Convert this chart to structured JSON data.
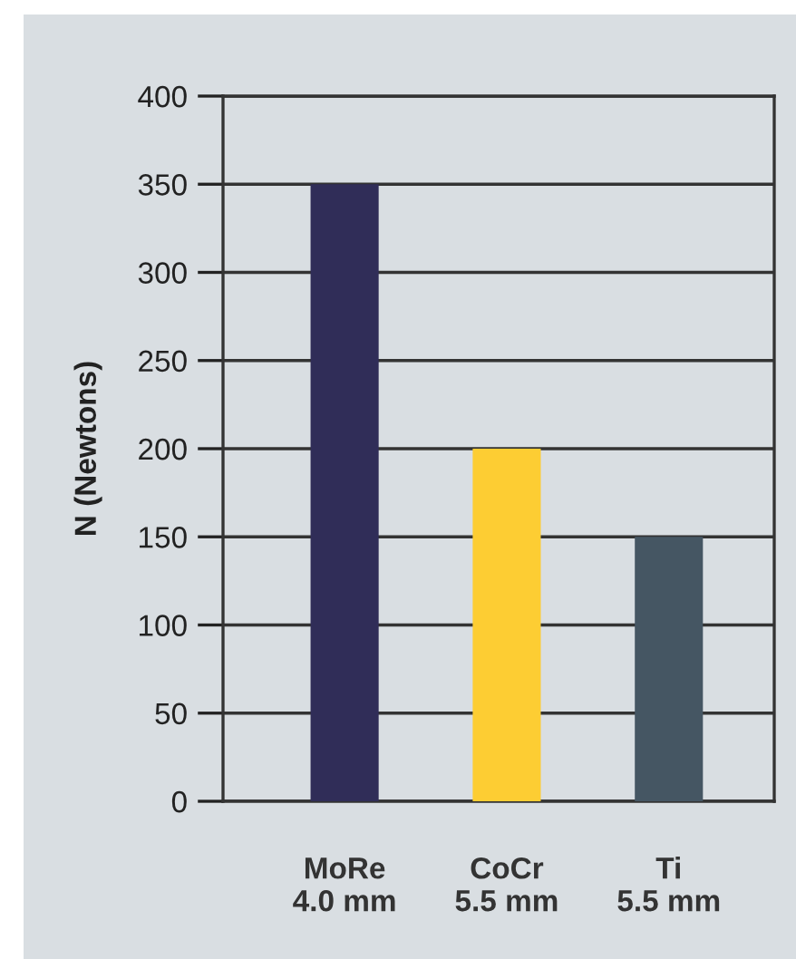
{
  "chart_data": {
    "type": "bar",
    "ylabel": "N (Newtons)",
    "categories": [
      "MoRe\n4.0 mm",
      "CoCr\n5.5 mm",
      "Ti\n5.5 mm"
    ],
    "values": [
      350,
      200,
      150
    ],
    "colors": [
      "#302d58",
      "#fdcd33",
      "#455663"
    ],
    "ylim": [
      0,
      400
    ],
    "yticks": [
      0,
      50,
      100,
      150,
      200,
      250,
      300,
      350,
      400
    ],
    "grid": "y"
  }
}
